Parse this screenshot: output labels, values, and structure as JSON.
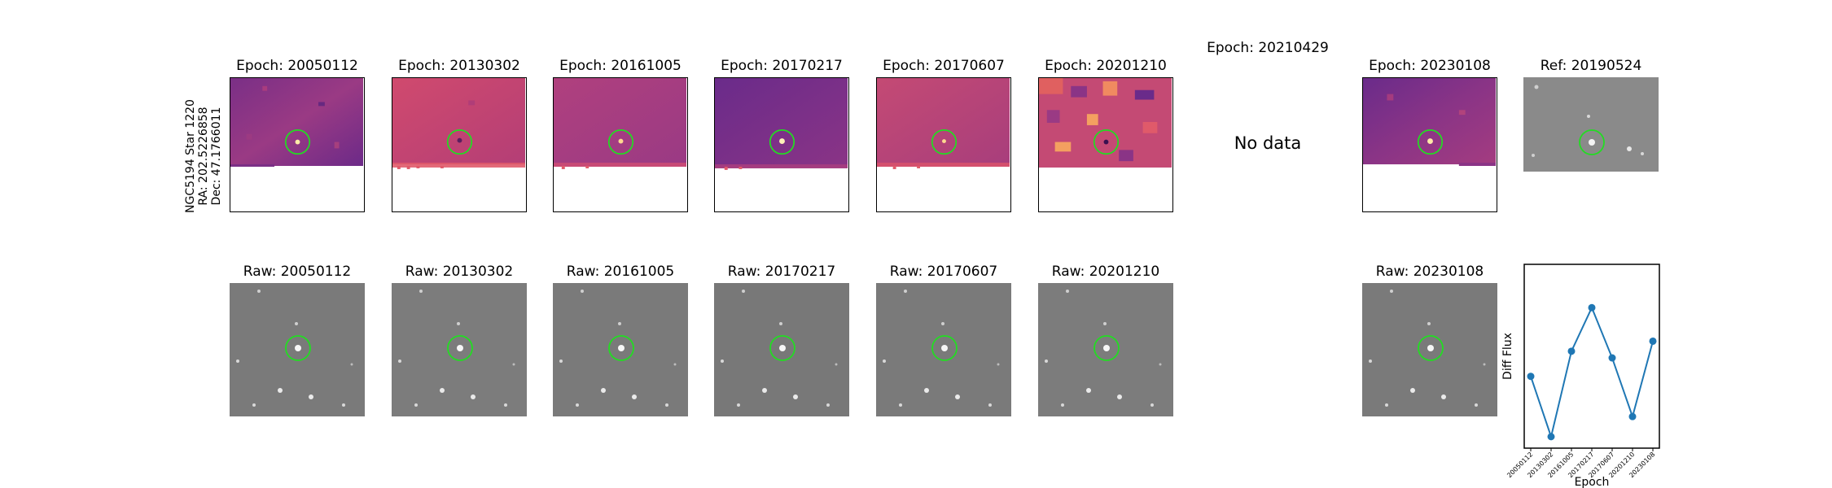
{
  "target_info": {
    "line1": "NGC5194 Star 1220",
    "line2": "RA: 202.5226858",
    "line3": "Dec: 47.1766011"
  },
  "diff_panels": [
    {
      "title": "Epoch: 20050112",
      "has_data": true
    },
    {
      "title": "Epoch: 20130302",
      "has_data": true
    },
    {
      "title": "Epoch: 20161005",
      "has_data": true
    },
    {
      "title": "Epoch: 20170217",
      "has_data": true
    },
    {
      "title": "Epoch: 20170607",
      "has_data": true
    },
    {
      "title": "Epoch: 20201210",
      "has_data": true
    },
    {
      "title": "Epoch: 20210429",
      "has_data": false,
      "message": "No data"
    },
    {
      "title": "Epoch: 20230108",
      "has_data": true
    }
  ],
  "reference_panel": {
    "title": "Ref: 20190524"
  },
  "raw_panels": [
    {
      "title": "Raw: 20050112"
    },
    {
      "title": "Raw: 20130302"
    },
    {
      "title": "Raw: 20161005"
    },
    {
      "title": "Raw: 20170217"
    },
    {
      "title": "Raw: 20170607"
    },
    {
      "title": "Raw: 20201210"
    },
    {
      "title": "Raw: 20230108"
    }
  ],
  "colors": {
    "target_circle": "#22dd22",
    "series_line": "#1f77b4",
    "magma_dark": "#6a2b8a",
    "magma_mid": "#b8407a",
    "magma_light": "#e05a6a",
    "raw_gray": "#7a7a7a"
  },
  "chart_data": {
    "type": "line",
    "xlabel": "Epoch",
    "ylabel": "Diff Flux",
    "x_tick_labels": [
      "20050112",
      "20130302",
      "20161005",
      "20170217",
      "20170607",
      "20201210",
      "20230108"
    ],
    "grid": false,
    "y_tick_labels_shown": false,
    "series": [
      {
        "x": [
          "20050112",
          "20130302",
          "20161005",
          "20170217",
          "20170607",
          "20201210",
          "20230108"
        ],
        "values": [
          0.38,
          0.02,
          0.53,
          0.79,
          0.49,
          0.14,
          0.59
        ]
      }
    ]
  }
}
